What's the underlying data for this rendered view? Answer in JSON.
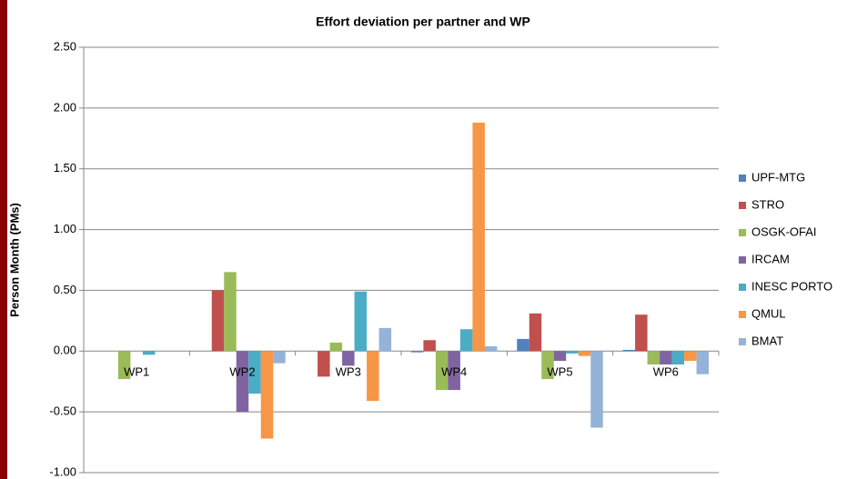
{
  "chart_data": {
    "type": "bar",
    "title": "Effort deviation per partner and WP",
    "y_label": "Person Month (PMs)",
    "categories": [
      "WP1",
      "WP2",
      "WP3",
      "WP4",
      "WP5",
      "WP6"
    ],
    "series": [
      {
        "name": "UPF-MTG",
        "color": "#4f81bd",
        "values": [
          0,
          0,
          0,
          -0.01,
          0.1,
          0.01
        ]
      },
      {
        "name": "STRO",
        "color": "#c0504d",
        "values": [
          0,
          0.5,
          -0.21,
          0.09,
          0.31,
          0.3
        ]
      },
      {
        "name": "OSGK-OFAI",
        "color": "#9bbb59",
        "values": [
          -0.23,
          0.65,
          0.07,
          -0.32,
          -0.23,
          -0.11
        ]
      },
      {
        "name": "IRCAM",
        "color": "#8064a2",
        "values": [
          0,
          -0.5,
          -0.12,
          -0.32,
          -0.08,
          -0.11
        ]
      },
      {
        "name": "INESC PORTO",
        "color": "#4bacc6",
        "values": [
          -0.03,
          -0.35,
          0.49,
          0.18,
          -0.02,
          -0.11
        ]
      },
      {
        "name": "QMUL",
        "color": "#f79646",
        "values": [
          0,
          -0.72,
          -0.41,
          1.88,
          -0.04,
          -0.08
        ]
      },
      {
        "name": "BMAT",
        "color": "#95b3d7",
        "values": [
          0,
          -0.1,
          0.19,
          0.04,
          -0.63,
          -0.19
        ]
      }
    ],
    "ylim": [
      -1,
      2.5
    ],
    "yticks": [
      {
        "value": -1,
        "label": "-1.00"
      },
      {
        "value": -0.5,
        "label": "-0.50"
      },
      {
        "value": 0,
        "label": "0.00"
      },
      {
        "value": 0.5,
        "label": "0.50"
      },
      {
        "value": 1,
        "label": "1.00"
      },
      {
        "value": 1.5,
        "label": "1.50"
      },
      {
        "value": 2,
        "label": "2.00"
      },
      {
        "value": 2.5,
        "label": "2.50"
      }
    ],
    "grid": true,
    "legend": "right"
  }
}
